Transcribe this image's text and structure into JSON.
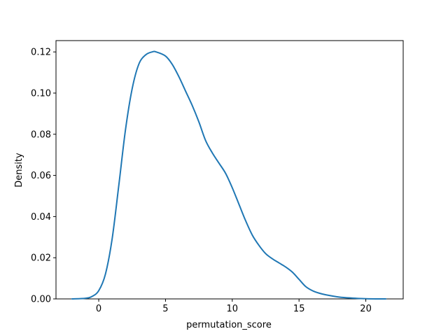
{
  "chart_data": {
    "type": "line",
    "title": "",
    "xlabel": "permutation_score",
    "ylabel": "Density",
    "xlim": [
      -3.2,
      22.8
    ],
    "ylim": [
      0.0,
      0.1255
    ],
    "xticks": [
      0,
      5,
      10,
      15,
      20
    ],
    "xtick_labels": [
      "0",
      "5",
      "10",
      "15",
      "20"
    ],
    "yticks": [
      0.0,
      0.02,
      0.04,
      0.06,
      0.08,
      0.1,
      0.12
    ],
    "ytick_labels": [
      "0.00",
      "0.02",
      "0.04",
      "0.06",
      "0.08",
      "0.10",
      "0.12"
    ],
    "grid": false,
    "legend": "none",
    "series": [
      {
        "color": "#1f77b4",
        "x": [
          -2.0,
          -1.0,
          -0.5,
          0.0,
          0.5,
          1.0,
          1.5,
          2.0,
          2.5,
          3.0,
          3.5,
          4.0,
          4.3,
          5.0,
          5.5,
          6.0,
          6.5,
          7.0,
          7.5,
          8.0,
          8.5,
          9.0,
          9.5,
          10.0,
          10.5,
          11.0,
          11.5,
          12.0,
          12.5,
          13.0,
          13.5,
          14.0,
          14.5,
          15.0,
          15.5,
          16.0,
          16.5,
          17.0,
          18.0,
          19.0,
          20.0,
          21.5
        ],
        "y": [
          0.0,
          0.0003,
          0.0012,
          0.004,
          0.012,
          0.029,
          0.055,
          0.082,
          0.102,
          0.114,
          0.1185,
          0.12,
          0.12,
          0.118,
          0.114,
          0.108,
          0.101,
          0.094,
          0.086,
          0.077,
          0.071,
          0.066,
          0.061,
          0.054,
          0.046,
          0.038,
          0.031,
          0.026,
          0.022,
          0.0195,
          0.0175,
          0.0155,
          0.013,
          0.0095,
          0.006,
          0.004,
          0.0028,
          0.002,
          0.0009,
          0.0004,
          0.0001,
          0.0
        ]
      }
    ]
  }
}
